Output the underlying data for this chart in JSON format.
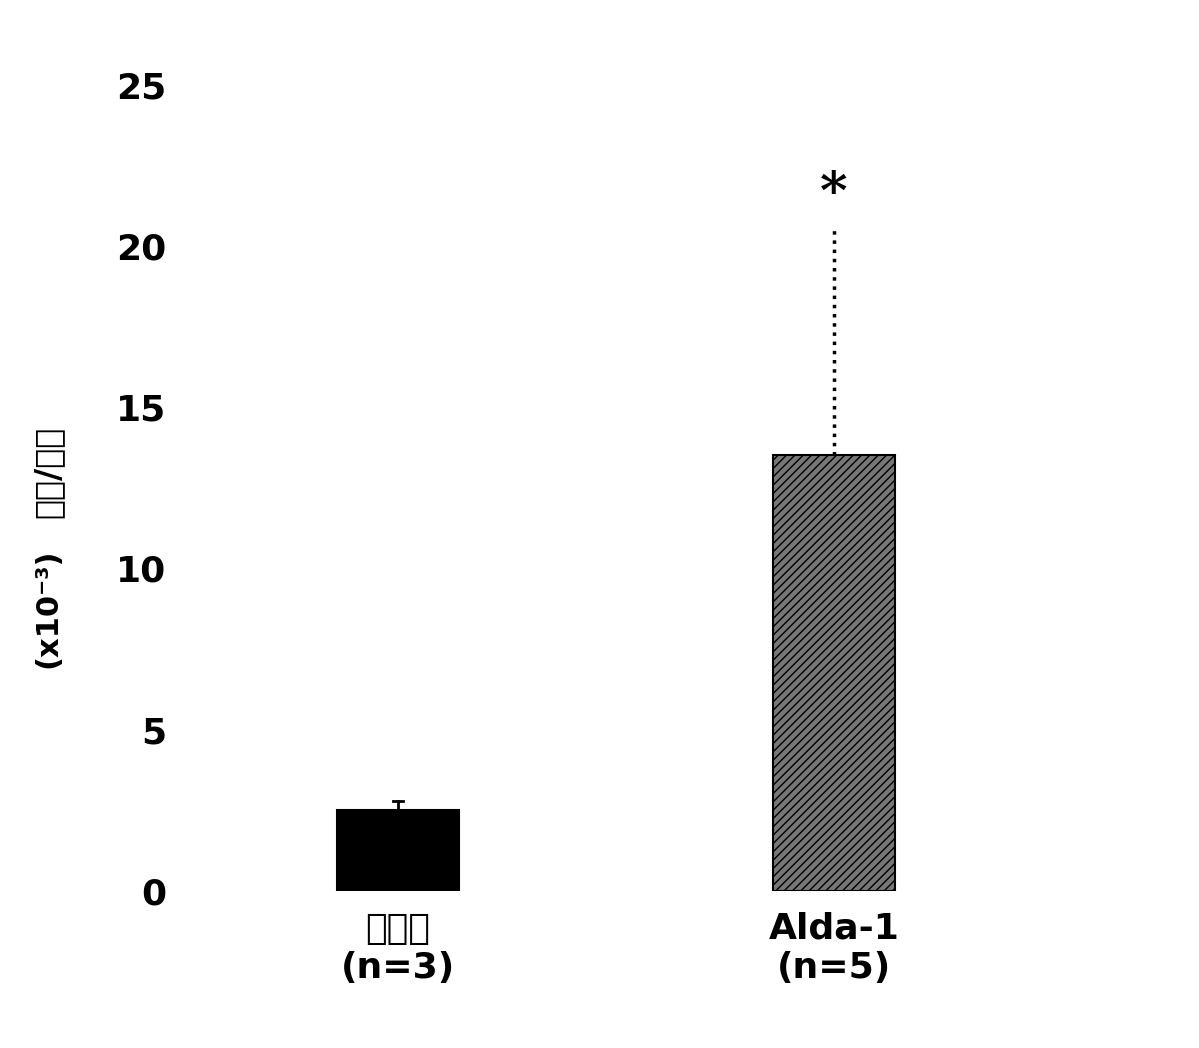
{
  "categories": [
    "媒介物\n(n=3)",
    "Alda-1\n(n=5)"
  ],
  "values": [
    2.5,
    13.5
  ],
  "error_bar1_up": 0.3,
  "error_bar1_down": 0.3,
  "error_bar2_up": 7.0,
  "bar_colors": [
    "#000000",
    "#777777"
  ],
  "bar_hatches": [
    "",
    "////"
  ],
  "ylabel_line1": "细胞/腿部",
  "ylabel_line2": "(x10⁻³)",
  "ylim": [
    0,
    26
  ],
  "yticks": [
    0,
    5,
    10,
    15,
    20,
    25
  ],
  "significance_label": "*",
  "background_color": "#ffffff",
  "tick_label_fontsize": 26,
  "ylabel_fontsize": 24,
  "bar_width": 0.28,
  "error_capsize": 0
}
